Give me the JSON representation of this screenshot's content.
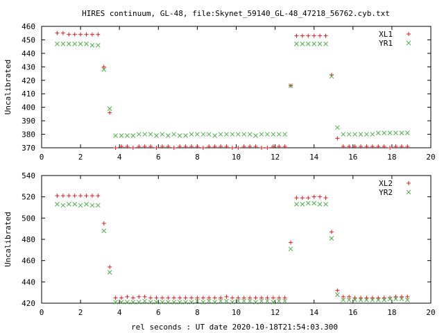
{
  "title": "HIRES continuum, GL-48, file:Skynet_59140_GL-48_47218_56762.cyb.txt",
  "x_label": "rel seconds : UT date 2020-10-18T21:54:03.300",
  "chart_data": [
    {
      "type": "scatter",
      "ylabel": "Uncalibrated",
      "xlim": [
        0,
        20
      ],
      "ylim": [
        370,
        460
      ],
      "xticks": [
        0,
        2,
        4,
        6,
        8,
        10,
        12,
        14,
        16,
        18,
        20
      ],
      "yticks": [
        370,
        380,
        390,
        400,
        410,
        420,
        430,
        440,
        450,
        460
      ],
      "legend_position": "top-right",
      "series": [
        {
          "name": "XL1",
          "marker": "plus",
          "color": "#e41a1c",
          "points": [
            [
              0.8,
              455
            ],
            [
              1.1,
              455
            ],
            [
              1.4,
              454
            ],
            [
              1.7,
              454
            ],
            [
              2.0,
              454
            ],
            [
              2.3,
              454
            ],
            [
              2.6,
              454
            ],
            [
              2.9,
              454
            ],
            [
              3.2,
              430
            ],
            [
              3.5,
              396
            ],
            [
              3.8,
              370
            ],
            [
              4.1,
              371
            ],
            [
              4.4,
              371
            ],
            [
              4.7,
              370
            ],
            [
              5.0,
              371
            ],
            [
              5.3,
              371
            ],
            [
              5.6,
              371
            ],
            [
              5.9,
              370
            ],
            [
              6.2,
              371
            ],
            [
              6.5,
              371
            ],
            [
              6.8,
              370
            ],
            [
              7.1,
              371
            ],
            [
              7.4,
              371
            ],
            [
              7.7,
              371
            ],
            [
              8.0,
              371
            ],
            [
              8.3,
              370
            ],
            [
              8.6,
              371
            ],
            [
              8.9,
              371
            ],
            [
              9.2,
              371
            ],
            [
              9.5,
              371
            ],
            [
              9.8,
              370
            ],
            [
              10.1,
              370
            ],
            [
              10.4,
              371
            ],
            [
              10.7,
              371
            ],
            [
              11.0,
              371
            ],
            [
              11.3,
              370
            ],
            [
              11.6,
              370
            ],
            [
              11.9,
              371
            ],
            [
              12.2,
              371
            ],
            [
              12.5,
              371
            ],
            [
              12.8,
              416
            ],
            [
              13.1,
              453
            ],
            [
              13.4,
              453
            ],
            [
              13.7,
              453
            ],
            [
              14.0,
              453
            ],
            [
              14.3,
              453
            ],
            [
              14.6,
              453
            ],
            [
              14.9,
              424
            ],
            [
              15.2,
              377
            ],
            [
              15.5,
              371
            ],
            [
              15.8,
              371
            ],
            [
              16.1,
              371
            ],
            [
              16.4,
              371
            ],
            [
              16.7,
              371
            ],
            [
              17.0,
              371
            ],
            [
              17.3,
              371
            ],
            [
              17.6,
              371
            ],
            [
              17.9,
              370
            ],
            [
              18.2,
              371
            ],
            [
              18.5,
              371
            ],
            [
              18.8,
              371
            ]
          ]
        },
        {
          "name": "YR1",
          "marker": "cross",
          "color": "#4daf4a",
          "points": [
            [
              0.8,
              447
            ],
            [
              1.1,
              447
            ],
            [
              1.4,
              447
            ],
            [
              1.7,
              447
            ],
            [
              2.0,
              447
            ],
            [
              2.3,
              447
            ],
            [
              2.6,
              446
            ],
            [
              2.9,
              446
            ],
            [
              3.2,
              428
            ],
            [
              3.5,
              399
            ],
            [
              3.8,
              379
            ],
            [
              4.1,
              379
            ],
            [
              4.4,
              379
            ],
            [
              4.7,
              379
            ],
            [
              5.0,
              380
            ],
            [
              5.3,
              380
            ],
            [
              5.6,
              380
            ],
            [
              5.9,
              379
            ],
            [
              6.2,
              380
            ],
            [
              6.5,
              379
            ],
            [
              6.8,
              380
            ],
            [
              7.1,
              379
            ],
            [
              7.4,
              379
            ],
            [
              7.7,
              380
            ],
            [
              8.0,
              380
            ],
            [
              8.3,
              380
            ],
            [
              8.6,
              380
            ],
            [
              8.9,
              379
            ],
            [
              9.2,
              380
            ],
            [
              9.5,
              380
            ],
            [
              9.8,
              380
            ],
            [
              10.1,
              380
            ],
            [
              10.4,
              380
            ],
            [
              10.7,
              380
            ],
            [
              11.0,
              379
            ],
            [
              11.3,
              380
            ],
            [
              11.6,
              380
            ],
            [
              11.9,
              380
            ],
            [
              12.2,
              380
            ],
            [
              12.5,
              380
            ],
            [
              12.8,
              416
            ],
            [
              13.1,
              447
            ],
            [
              13.4,
              447
            ],
            [
              13.7,
              447
            ],
            [
              14.0,
              447
            ],
            [
              14.3,
              447
            ],
            [
              14.6,
              447
            ],
            [
              14.9,
              423
            ],
            [
              15.2,
              385
            ],
            [
              15.5,
              380
            ],
            [
              15.8,
              380
            ],
            [
              16.1,
              380
            ],
            [
              16.4,
              380
            ],
            [
              16.7,
              380
            ],
            [
              17.0,
              380
            ],
            [
              17.3,
              381
            ],
            [
              17.6,
              381
            ],
            [
              17.9,
              381
            ],
            [
              18.2,
              381
            ],
            [
              18.5,
              381
            ],
            [
              18.8,
              381
            ]
          ]
        }
      ]
    },
    {
      "type": "scatter",
      "ylabel": "Uncalibrated",
      "xlim": [
        0,
        20
      ],
      "ylim": [
        420,
        540
      ],
      "xticks": [
        0,
        2,
        4,
        6,
        8,
        10,
        12,
        14,
        16,
        18,
        20
      ],
      "yticks": [
        420,
        440,
        460,
        480,
        500,
        520,
        540
      ],
      "legend_position": "top-right",
      "series": [
        {
          "name": "XL2",
          "marker": "plus",
          "color": "#e41a1c",
          "points": [
            [
              0.8,
              521
            ],
            [
              1.1,
              521
            ],
            [
              1.4,
              521
            ],
            [
              1.7,
              521
            ],
            [
              2.0,
              521
            ],
            [
              2.3,
              521
            ],
            [
              2.6,
              521
            ],
            [
              2.9,
              521
            ],
            [
              3.2,
              495
            ],
            [
              3.5,
              454
            ],
            [
              3.8,
              425
            ],
            [
              4.1,
              425
            ],
            [
              4.4,
              426
            ],
            [
              4.7,
              425
            ],
            [
              5.0,
              426
            ],
            [
              5.3,
              426
            ],
            [
              5.6,
              425
            ],
            [
              5.9,
              425
            ],
            [
              6.2,
              425
            ],
            [
              6.5,
              425
            ],
            [
              6.8,
              425
            ],
            [
              7.1,
              425
            ],
            [
              7.4,
              425
            ],
            [
              7.7,
              425
            ],
            [
              8.0,
              425
            ],
            [
              8.3,
              425
            ],
            [
              8.6,
              425
            ],
            [
              8.9,
              425
            ],
            [
              9.2,
              425
            ],
            [
              9.5,
              426
            ],
            [
              9.8,
              425
            ],
            [
              10.1,
              425
            ],
            [
              10.4,
              425
            ],
            [
              10.7,
              425
            ],
            [
              11.0,
              425
            ],
            [
              11.3,
              425
            ],
            [
              11.6,
              425
            ],
            [
              11.9,
              425
            ],
            [
              12.2,
              425
            ],
            [
              12.5,
              425
            ],
            [
              12.8,
              477
            ],
            [
              13.1,
              519
            ],
            [
              13.4,
              519
            ],
            [
              13.7,
              519
            ],
            [
              14.0,
              520
            ],
            [
              14.3,
              520
            ],
            [
              14.6,
              519
            ],
            [
              14.9,
              487
            ],
            [
              15.2,
              432
            ],
            [
              15.5,
              426
            ],
            [
              15.8,
              426
            ],
            [
              16.1,
              425
            ],
            [
              16.4,
              425
            ],
            [
              16.7,
              425
            ],
            [
              17.0,
              425
            ],
            [
              17.3,
              425
            ],
            [
              17.6,
              425
            ],
            [
              17.9,
              425
            ],
            [
              18.2,
              426
            ],
            [
              18.5,
              426
            ],
            [
              18.8,
              426
            ]
          ]
        },
        {
          "name": "YR2",
          "marker": "cross",
          "color": "#4daf4a",
          "points": [
            [
              0.8,
              513
            ],
            [
              1.1,
              512
            ],
            [
              1.4,
              513
            ],
            [
              1.7,
              513
            ],
            [
              2.0,
              512
            ],
            [
              2.3,
              513
            ],
            [
              2.6,
              512
            ],
            [
              2.9,
              512
            ],
            [
              3.2,
              488
            ],
            [
              3.5,
              449
            ],
            [
              3.8,
              421
            ],
            [
              4.1,
              421
            ],
            [
              4.4,
              421
            ],
            [
              4.7,
              421
            ],
            [
              5.0,
              421
            ],
            [
              5.3,
              422
            ],
            [
              5.6,
              421
            ],
            [
              5.9,
              421
            ],
            [
              6.2,
              421
            ],
            [
              6.5,
              421
            ],
            [
              6.8,
              421
            ],
            [
              7.1,
              421
            ],
            [
              7.4,
              421
            ],
            [
              7.7,
              421
            ],
            [
              8.0,
              422
            ],
            [
              8.3,
              421
            ],
            [
              8.6,
              422
            ],
            [
              8.9,
              421
            ],
            [
              9.2,
              422
            ],
            [
              9.5,
              422
            ],
            [
              9.8,
              421
            ],
            [
              10.1,
              422
            ],
            [
              10.4,
              422
            ],
            [
              10.7,
              422
            ],
            [
              11.0,
              421
            ],
            [
              11.3,
              422
            ],
            [
              11.6,
              422
            ],
            [
              11.9,
              421
            ],
            [
              12.2,
              422
            ],
            [
              12.5,
              422
            ],
            [
              12.8,
              471
            ],
            [
              13.1,
              513
            ],
            [
              13.4,
              513
            ],
            [
              13.7,
              514
            ],
            [
              14.0,
              514
            ],
            [
              14.3,
              513
            ],
            [
              14.6,
              513
            ],
            [
              14.9,
              481
            ],
            [
              15.2,
              428
            ],
            [
              15.5,
              423
            ],
            [
              15.8,
              423
            ],
            [
              16.1,
              423
            ],
            [
              16.4,
              423
            ],
            [
              16.7,
              423
            ],
            [
              17.0,
              423
            ],
            [
              17.3,
              423
            ],
            [
              17.6,
              423
            ],
            [
              17.9,
              424
            ],
            [
              18.2,
              424
            ],
            [
              18.5,
              424
            ],
            [
              18.8,
              423
            ]
          ]
        }
      ]
    }
  ]
}
